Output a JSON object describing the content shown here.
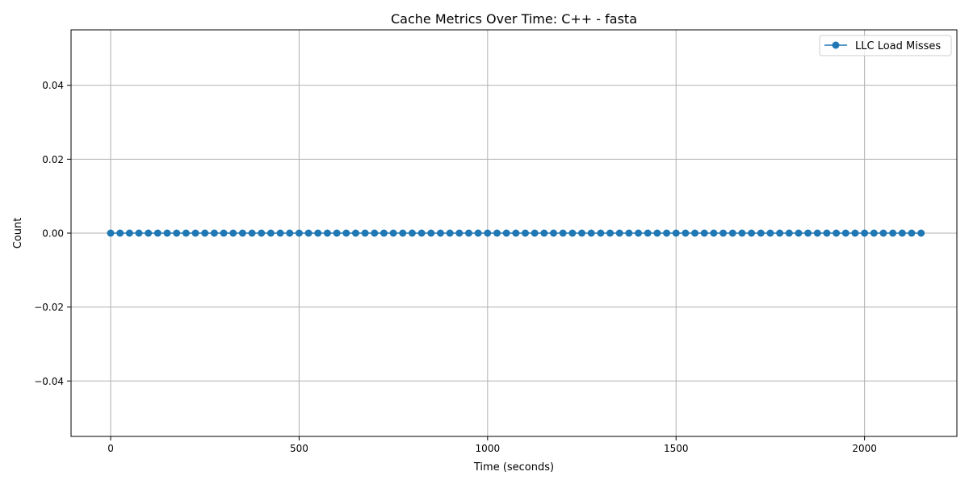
{
  "chart_data": {
    "type": "line",
    "title": "Cache Metrics Over Time: C++ - fasta",
    "xlabel": "Time (seconds)",
    "ylabel": "Count",
    "xlim": [
      -105,
      2245
    ],
    "ylim": [
      -0.055,
      0.055
    ],
    "x_ticks": [
      0,
      500,
      1000,
      1500,
      2000
    ],
    "x_tick_labels": [
      "0",
      "500",
      "1000",
      "1500",
      "2000"
    ],
    "y_ticks": [
      -0.04,
      -0.02,
      0.0,
      0.02,
      0.04
    ],
    "y_tick_labels": [
      "−0.04",
      "−0.02",
      "0.00",
      "0.02",
      "0.04"
    ],
    "grid": true,
    "legend_position": "top-right",
    "series": [
      {
        "name": "LLC Load Misses",
        "color": "#1f77b4",
        "marker": "circle",
        "x": [
          0,
          25,
          50,
          75,
          100,
          125,
          150,
          175,
          200,
          225,
          250,
          275,
          300,
          325,
          350,
          375,
          400,
          425,
          450,
          475,
          500,
          525,
          550,
          575,
          600,
          625,
          650,
          675,
          700,
          725,
          750,
          775,
          800,
          825,
          850,
          875,
          900,
          925,
          950,
          975,
          1000,
          1025,
          1050,
          1075,
          1100,
          1125,
          1150,
          1175,
          1200,
          1225,
          1250,
          1275,
          1300,
          1325,
          1350,
          1375,
          1400,
          1425,
          1450,
          1475,
          1500,
          1525,
          1550,
          1575,
          1600,
          1625,
          1650,
          1675,
          1700,
          1725,
          1750,
          1775,
          1800,
          1825,
          1850,
          1875,
          1900,
          1925,
          1950,
          1975,
          2000,
          2025,
          2050,
          2075,
          2100,
          2125,
          2150
        ],
        "y": [
          0,
          0,
          0,
          0,
          0,
          0,
          0,
          0,
          0,
          0,
          0,
          0,
          0,
          0,
          0,
          0,
          0,
          0,
          0,
          0,
          0,
          0,
          0,
          0,
          0,
          0,
          0,
          0,
          0,
          0,
          0,
          0,
          0,
          0,
          0,
          0,
          0,
          0,
          0,
          0,
          0,
          0,
          0,
          0,
          0,
          0,
          0,
          0,
          0,
          0,
          0,
          0,
          0,
          0,
          0,
          0,
          0,
          0,
          0,
          0,
          0,
          0,
          0,
          0,
          0,
          0,
          0,
          0,
          0,
          0,
          0,
          0,
          0,
          0,
          0,
          0,
          0,
          0,
          0,
          0,
          0,
          0,
          0,
          0,
          0,
          0,
          0
        ]
      }
    ]
  }
}
